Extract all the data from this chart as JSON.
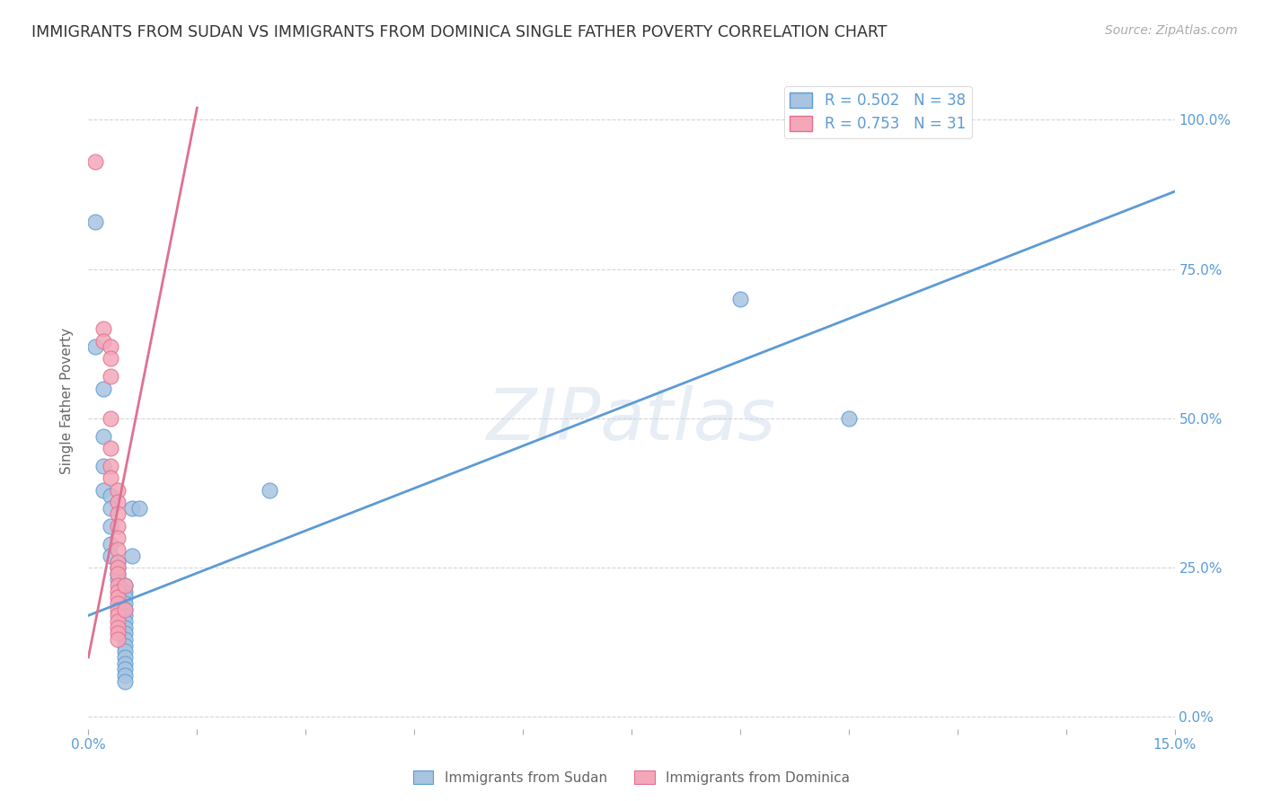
{
  "title": "IMMIGRANTS FROM SUDAN VS IMMIGRANTS FROM DOMINICA SINGLE FATHER POVERTY CORRELATION CHART",
  "source_text": "Source: ZipAtlas.com",
  "ylabel": "Single Father Poverty",
  "xlim": [
    0.0,
    0.15
  ],
  "ylim": [
    -0.02,
    1.08
  ],
  "xtick_positions": [
    0.0,
    0.015,
    0.03,
    0.045,
    0.06,
    0.075,
    0.09,
    0.105,
    0.12,
    0.135,
    0.15
  ],
  "xtick_labels": [
    "0.0%",
    "",
    "",
    "",
    "",
    "",
    "",
    "",
    "",
    "",
    "15.0%"
  ],
  "ytick_positions": [
    0.0,
    0.25,
    0.5,
    0.75,
    1.0
  ],
  "ytick_labels": [
    "0.0%",
    "25.0%",
    "50.0%",
    "75.0%",
    "100.0%"
  ],
  "R_sudan": 0.502,
  "N_sudan": 38,
  "R_dominica": 0.753,
  "N_dominica": 31,
  "color_sudan": "#a8c4e0",
  "color_dominica": "#f4a7b9",
  "color_line_sudan": "#5b9bd5",
  "color_line_dominica": "#e07090",
  "watermark": "ZIPatlas",
  "sudan_points": [
    [
      0.001,
      0.83
    ],
    [
      0.001,
      0.62
    ],
    [
      0.002,
      0.55
    ],
    [
      0.002,
      0.47
    ],
    [
      0.002,
      0.42
    ],
    [
      0.002,
      0.38
    ],
    [
      0.003,
      0.37
    ],
    [
      0.003,
      0.35
    ],
    [
      0.003,
      0.32
    ],
    [
      0.003,
      0.29
    ],
    [
      0.003,
      0.27
    ],
    [
      0.004,
      0.26
    ],
    [
      0.004,
      0.25
    ],
    [
      0.004,
      0.24
    ],
    [
      0.004,
      0.23
    ],
    [
      0.005,
      0.22
    ],
    [
      0.005,
      0.21
    ],
    [
      0.005,
      0.2
    ],
    [
      0.005,
      0.19
    ],
    [
      0.005,
      0.18
    ],
    [
      0.005,
      0.17
    ],
    [
      0.005,
      0.16
    ],
    [
      0.005,
      0.15
    ],
    [
      0.005,
      0.14
    ],
    [
      0.005,
      0.13
    ],
    [
      0.005,
      0.12
    ],
    [
      0.005,
      0.11
    ],
    [
      0.005,
      0.1
    ],
    [
      0.005,
      0.09
    ],
    [
      0.005,
      0.08
    ],
    [
      0.005,
      0.07
    ],
    [
      0.005,
      0.06
    ],
    [
      0.006,
      0.35
    ],
    [
      0.006,
      0.27
    ],
    [
      0.007,
      0.35
    ],
    [
      0.025,
      0.38
    ],
    [
      0.09,
      0.7
    ],
    [
      0.105,
      0.5
    ]
  ],
  "dominica_points": [
    [
      0.001,
      0.93
    ],
    [
      0.002,
      0.65
    ],
    [
      0.002,
      0.63
    ],
    [
      0.003,
      0.62
    ],
    [
      0.003,
      0.6
    ],
    [
      0.003,
      0.57
    ],
    [
      0.003,
      0.5
    ],
    [
      0.003,
      0.45
    ],
    [
      0.003,
      0.42
    ],
    [
      0.003,
      0.4
    ],
    [
      0.004,
      0.38
    ],
    [
      0.004,
      0.36
    ],
    [
      0.004,
      0.34
    ],
    [
      0.004,
      0.32
    ],
    [
      0.004,
      0.3
    ],
    [
      0.004,
      0.28
    ],
    [
      0.004,
      0.26
    ],
    [
      0.004,
      0.25
    ],
    [
      0.004,
      0.24
    ],
    [
      0.004,
      0.22
    ],
    [
      0.004,
      0.21
    ],
    [
      0.004,
      0.2
    ],
    [
      0.004,
      0.19
    ],
    [
      0.004,
      0.18
    ],
    [
      0.004,
      0.17
    ],
    [
      0.004,
      0.16
    ],
    [
      0.004,
      0.15
    ],
    [
      0.004,
      0.14
    ],
    [
      0.004,
      0.13
    ],
    [
      0.005,
      0.22
    ],
    [
      0.005,
      0.18
    ]
  ],
  "sudan_line": {
    "x0": 0.0,
    "y0": 0.17,
    "x1": 0.15,
    "y1": 0.88
  },
  "dominica_line": {
    "x0": 0.0,
    "y0": 0.1,
    "x1": 0.015,
    "y1": 1.02
  },
  "grid_color": "#cccccc",
  "background_color": "#ffffff",
  "title_color": "#333333",
  "axis_color": "#5b9bd5"
}
